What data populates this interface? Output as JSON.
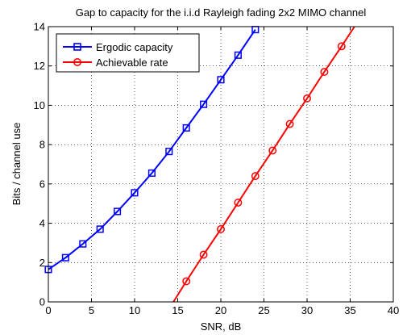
{
  "chart_data": {
    "type": "line",
    "title": "Gap to capacity for the i.i.d Rayleigh fading 2x2 MIMO channel",
    "xlabel": "SNR, dB",
    "ylabel": "Bits / channel use",
    "xlim": [
      0,
      40
    ],
    "ylim": [
      0,
      14
    ],
    "xticks": [
      0,
      5,
      10,
      15,
      20,
      25,
      30,
      35,
      40
    ],
    "yticks": [
      0,
      2,
      4,
      6,
      8,
      10,
      12,
      14
    ],
    "grid": true,
    "legend_position": "top-left",
    "series": [
      {
        "name": "Ergodic capacity",
        "color": "#0000ff",
        "marker": "square",
        "x": [
          0,
          2,
          4,
          6,
          8,
          10,
          12,
          14,
          16,
          18,
          20,
          22,
          24
        ],
        "y": [
          1.65,
          2.25,
          2.95,
          3.7,
          4.6,
          5.55,
          6.55,
          7.65,
          8.85,
          10.05,
          11.3,
          12.55,
          13.85
        ]
      },
      {
        "name": "Achievable rate",
        "color": "#ff0000",
        "marker": "circle",
        "x": [
          14.5,
          16,
          18,
          20,
          22,
          24,
          26,
          28,
          30,
          32,
          34,
          35.5
        ],
        "y": [
          0,
          1.05,
          2.4,
          3.7,
          5.05,
          6.4,
          7.7,
          9.05,
          10.35,
          11.7,
          13.0,
          14.0
        ],
        "marker_indices": [
          1,
          2,
          3,
          4,
          5,
          6,
          7,
          8,
          9,
          10
        ]
      }
    ]
  }
}
